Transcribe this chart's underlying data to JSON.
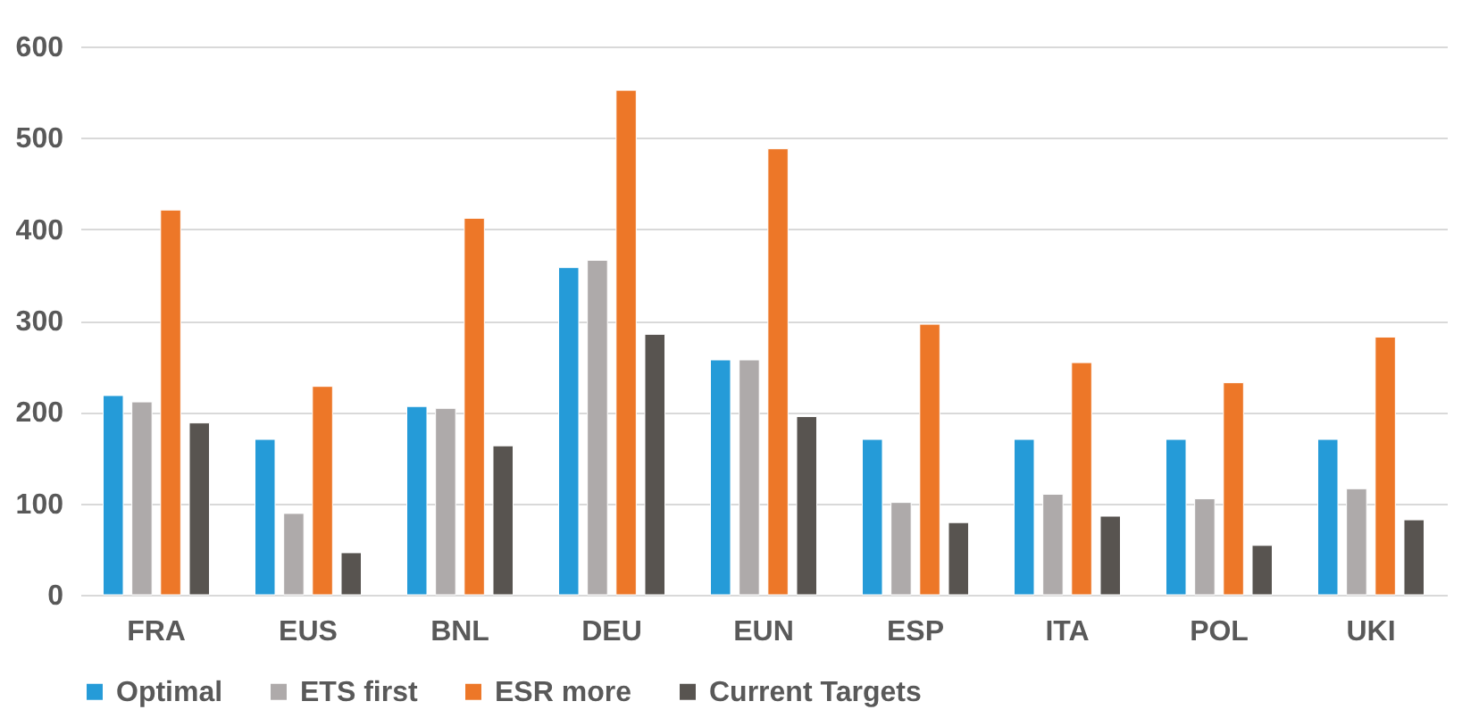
{
  "chart_data": {
    "type": "bar",
    "categories": [
      "FRA",
      "EUS",
      "BNL",
      "DEU",
      "EUN",
      "ESP",
      "ITA",
      "POL",
      "UKI"
    ],
    "series": [
      {
        "name": "Optimal",
        "color": "#259bd8",
        "values": [
          218,
          170,
          206,
          358,
          257,
          170,
          170,
          170,
          170
        ]
      },
      {
        "name": "ETS first",
        "color": "#aeaaaa",
        "values": [
          211,
          89,
          204,
          366,
          257,
          101,
          110,
          105,
          116
        ]
      },
      {
        "name": "ESR more",
        "color": "#ed7728",
        "values": [
          421,
          228,
          412,
          552,
          488,
          296,
          254,
          232,
          282
        ]
      },
      {
        "name": "Current Targets",
        "color": "#585450",
        "values": [
          188,
          46,
          163,
          285,
          195,
          79,
          86,
          54,
          82
        ]
      }
    ],
    "ylim": [
      0,
      600
    ],
    "yticks": [
      0,
      100,
      200,
      300,
      400,
      500,
      600
    ],
    "grid": "y",
    "legend": "bottom"
  }
}
